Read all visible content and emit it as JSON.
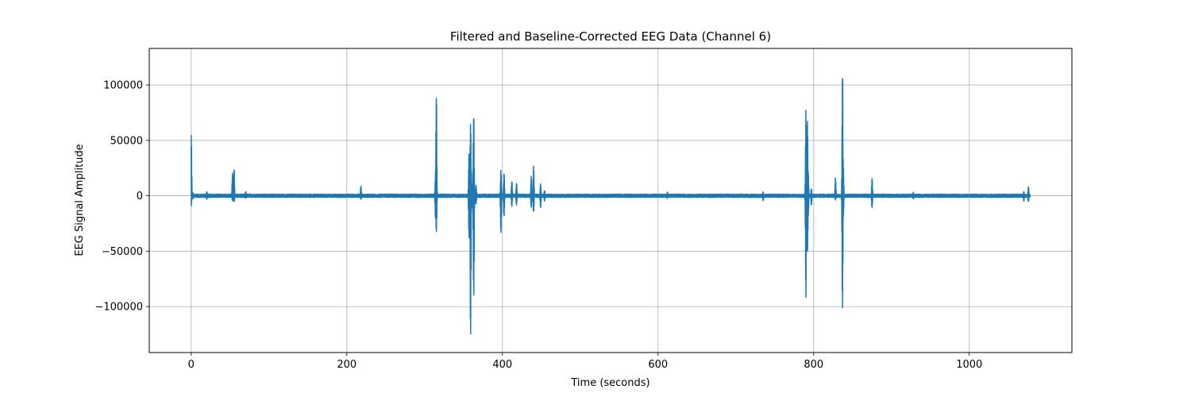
{
  "chart_data": {
    "type": "line",
    "title": "Filtered and Baseline-Corrected EEG Data (Channel 6)",
    "xlabel": "Time (seconds)",
    "ylabel": "EEG Signal Amplitude",
    "xlim": [
      -53.9,
      1131.9
    ],
    "ylim": [
      -141500,
      133000
    ],
    "xticks": [
      0,
      200,
      400,
      600,
      800,
      1000
    ],
    "xtick_labels": [
      "0",
      "200",
      "400",
      "600",
      "800",
      "1000"
    ],
    "yticks": [
      -100000,
      -50000,
      0,
      50000,
      100000
    ],
    "ytick_labels": [
      "−100000",
      "−50000",
      "0",
      "50000",
      "100000"
    ],
    "grid": true,
    "color": "#1f77b4",
    "series": [
      {
        "x_range": [
          0,
          1078
        ],
        "baseline_noise": 1500,
        "events": [
          {
            "x": 0.0,
            "max": 58000,
            "min": -9000
          },
          {
            "x": 2.0,
            "max": 3000,
            "min": -3000
          },
          {
            "x": 20.0,
            "max": 4000,
            "min": -3500
          },
          {
            "x": 53.0,
            "max": 21000,
            "min": -5000
          },
          {
            "x": 55.0,
            "max": 27000,
            "min": -6000
          },
          {
            "x": 70.0,
            "max": 4000,
            "min": -2500
          },
          {
            "x": 218.0,
            "max": 9500,
            "min": -3500
          },
          {
            "x": 314.0,
            "max": 24000,
            "min": -22000
          },
          {
            "x": 315.0,
            "max": 96000,
            "min": -35000
          },
          {
            "x": 357.0,
            "max": 42000,
            "min": -40000
          },
          {
            "x": 359.0,
            "max": 75000,
            "min": -129000
          },
          {
            "x": 362.0,
            "max": 21000,
            "min": -14000
          },
          {
            "x": 363.0,
            "max": 80000,
            "min": -100000
          },
          {
            "x": 366.0,
            "max": 10000,
            "min": -8000
          },
          {
            "x": 398.0,
            "max": 23500,
            "min": -33000
          },
          {
            "x": 402.0,
            "max": 21000,
            "min": -20000
          },
          {
            "x": 412.0,
            "max": 14000,
            "min": -10000
          },
          {
            "x": 418.0,
            "max": 12000,
            "min": -9000
          },
          {
            "x": 437.0,
            "max": 18000,
            "min": -12000
          },
          {
            "x": 440.0,
            "max": 27000,
            "min": -16000
          },
          {
            "x": 449.0,
            "max": 11000,
            "min": -11000
          },
          {
            "x": 454.0,
            "max": 5000,
            "min": -5000
          },
          {
            "x": 612.0,
            "max": 3500,
            "min": -2500
          },
          {
            "x": 735.0,
            "max": 3500,
            "min": -4500
          },
          {
            "x": 790.0,
            "max": 78000,
            "min": -93000
          },
          {
            "x": 792.0,
            "max": 70000,
            "min": -57000
          },
          {
            "x": 793.0,
            "max": 22000,
            "min": -20000
          },
          {
            "x": 797.0,
            "max": 7000,
            "min": -9000
          },
          {
            "x": 828.0,
            "max": 17000,
            "min": -4000
          },
          {
            "x": 837.0,
            "max": 121000,
            "min": -110000
          },
          {
            "x": 838.0,
            "max": 29000,
            "min": -20000
          },
          {
            "x": 875.0,
            "max": 16000,
            "min": -12000
          },
          {
            "x": 928.0,
            "max": 3500,
            "min": -3000
          },
          {
            "x": 1070.0,
            "max": 4000,
            "min": -5000
          },
          {
            "x": 1076.0,
            "max": 8500,
            "min": -6000
          }
        ]
      }
    ]
  }
}
